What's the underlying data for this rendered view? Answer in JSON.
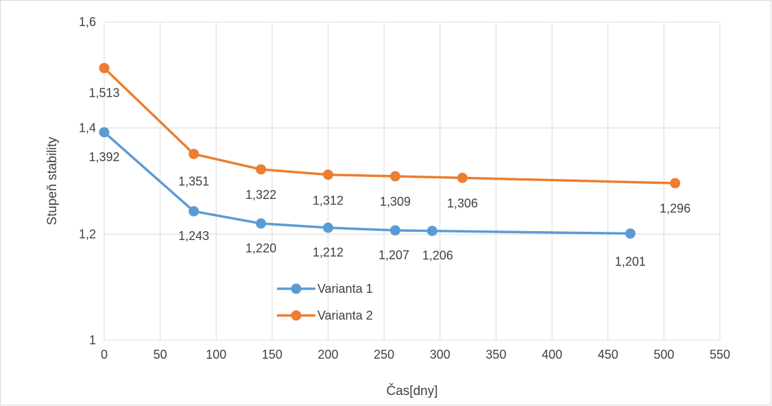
{
  "chart_data": {
    "type": "line",
    "title": "",
    "xlabel": "Čas[dny]",
    "ylabel": "Stupeň stability",
    "xlim": [
      0,
      550
    ],
    "ylim": [
      1,
      1.6
    ],
    "x_ticks": [
      0,
      50,
      100,
      150,
      200,
      250,
      300,
      350,
      400,
      450,
      500,
      550
    ],
    "x_tick_labels": [
      "0",
      "50",
      "100",
      "150",
      "200",
      "250",
      "300",
      "350",
      "400",
      "450",
      "500",
      "550"
    ],
    "y_ticks": [
      1,
      1.2,
      1.4,
      1.6
    ],
    "y_tick_labels": [
      "1",
      "1,2",
      "1,4",
      "1,6"
    ],
    "grid": true,
    "legend_position": "inside-bottom-center",
    "series": [
      {
        "name": "Varianta 1",
        "color": "#5b9bd5",
        "x": [
          0,
          80,
          140,
          200,
          260,
          293,
          470
        ],
        "y": [
          1.392,
          1.243,
          1.22,
          1.212,
          1.207,
          1.206,
          1.201
        ],
        "labels": [
          "1,392",
          "1,243",
          "1,220",
          "1,212",
          "1,207",
          "1,206",
          "1,201"
        ]
      },
      {
        "name": "Varianta 2",
        "color": "#ed7d31",
        "x": [
          0,
          80,
          140,
          200,
          260,
          320,
          510
        ],
        "y": [
          1.513,
          1.351,
          1.322,
          1.312,
          1.309,
          1.306,
          1.296
        ],
        "labels": [
          "1,513",
          "1,351",
          "1,322",
          "1,312",
          "1,309",
          "1,306",
          "1,296"
        ]
      }
    ]
  }
}
